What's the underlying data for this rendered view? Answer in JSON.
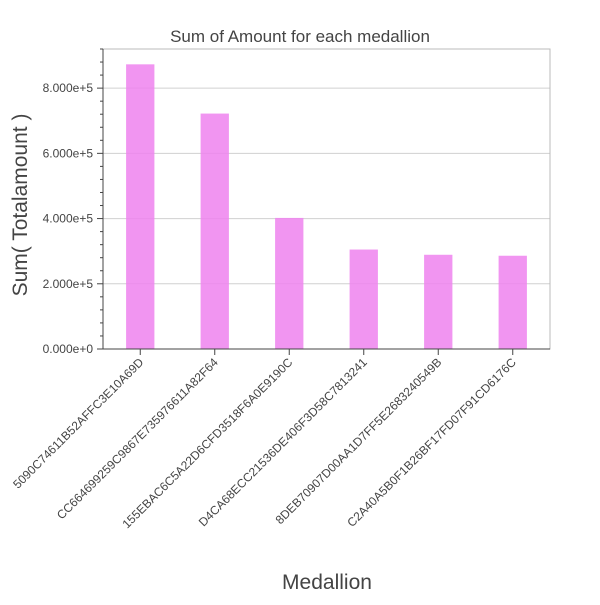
{
  "chart_data": {
    "type": "bar",
    "title": "Sum of Amount for each medallion",
    "xlabel": "Medallion",
    "ylabel": "Sum( Totalamount )",
    "categories": [
      "5090C74611B52AFFC3E10A69D",
      "CC664699259C9867E735976611A82F64",
      "155EBAC6C5A22D6CFD3518F6A0E9190C",
      "D4CA68ECC21536DE406F3D58C7813241",
      "8DEB70907D00AA1D7FF5E2683240549B",
      "C2A40A5B0F1B26BF17FD07F91CD6176C"
    ],
    "values": [
      873000,
      722000,
      402000,
      305000,
      289000,
      286000
    ],
    "ylim": [
      0,
      920000
    ],
    "yticks": [
      0,
      200000,
      400000,
      600000,
      800000
    ],
    "ytick_labels": [
      "0.000e+0",
      "2.000e+5",
      "4.000e+5",
      "6.000e+5",
      "8.000e+5"
    ],
    "grid": true,
    "bar_color": "#ee82ee"
  }
}
